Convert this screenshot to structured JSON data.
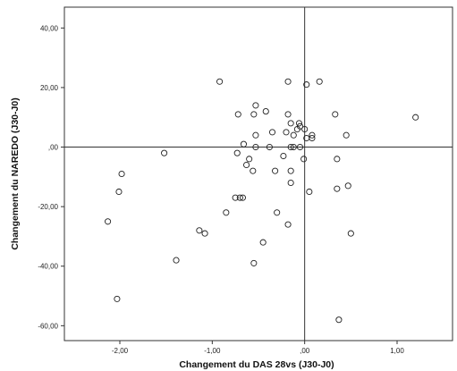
{
  "chart_data": {
    "type": "scatter",
    "title": "",
    "xlabel": "Changement du DAS 28vs (J30-J0)",
    "ylabel": "Changement du NAREDO (J30-J0)",
    "xlim": [
      -2.6,
      1.6
    ],
    "ylim": [
      -65,
      47
    ],
    "x_ticks": [
      -2.0,
      -1.0,
      0.0,
      1.0
    ],
    "x_tick_labels": [
      "-2,00",
      "-1,00",
      ",00",
      "1,00"
    ],
    "y_ticks": [
      40,
      20,
      0,
      -20,
      -40,
      -60
    ],
    "y_tick_labels": [
      "40,00",
      "20,00",
      ",00",
      "-20,00",
      "-40,00",
      "-60,00"
    ],
    "reference_lines": {
      "x": 0,
      "y": 0
    },
    "grid": false,
    "marker": "open-circle",
    "series": [
      {
        "points": [
          [
            -0.92,
            22
          ],
          [
            -0.18,
            22
          ],
          [
            0.02,
            21
          ],
          [
            0.16,
            22
          ],
          [
            -0.53,
            14
          ],
          [
            -0.42,
            12
          ],
          [
            -0.72,
            11
          ],
          [
            -0.55,
            11
          ],
          [
            -0.18,
            11
          ],
          [
            0.33,
            11
          ],
          [
            1.2,
            10
          ],
          [
            -0.15,
            8
          ],
          [
            -0.06,
            8
          ],
          [
            -0.05,
            7
          ],
          [
            -0.08,
            6
          ],
          [
            0.0,
            6
          ],
          [
            -0.2,
            5
          ],
          [
            -0.12,
            4
          ],
          [
            0.08,
            4
          ],
          [
            0.45,
            4
          ],
          [
            0.08,
            3
          ],
          [
            -0.35,
            5
          ],
          [
            0.02,
            3
          ],
          [
            -0.53,
            4
          ],
          [
            -0.38,
            0
          ],
          [
            -0.53,
            0
          ],
          [
            -0.66,
            1
          ],
          [
            -0.73,
            -2
          ],
          [
            -0.6,
            -4
          ],
          [
            -0.15,
            0
          ],
          [
            -0.12,
            0
          ],
          [
            -0.05,
            0
          ],
          [
            -0.23,
            -3
          ],
          [
            -1.52,
            -2
          ],
          [
            -1.98,
            -9
          ],
          [
            -0.56,
            -8
          ],
          [
            -0.32,
            -8
          ],
          [
            -0.15,
            -8
          ],
          [
            -0.63,
            -6
          ],
          [
            -0.01,
            -4
          ],
          [
            0.35,
            -4
          ],
          [
            -0.15,
            -12
          ],
          [
            -2.01,
            -15
          ],
          [
            0.05,
            -15
          ],
          [
            0.35,
            -14
          ],
          [
            0.47,
            -13
          ],
          [
            -0.7,
            -17
          ],
          [
            -0.75,
            -17
          ],
          [
            -0.67,
            -17
          ],
          [
            -0.85,
            -22
          ],
          [
            -0.3,
            -22
          ],
          [
            -2.13,
            -25
          ],
          [
            -0.18,
            -26
          ],
          [
            -1.14,
            -28
          ],
          [
            -1.08,
            -29
          ],
          [
            0.5,
            -29
          ],
          [
            -0.45,
            -32
          ],
          [
            -1.39,
            -38
          ],
          [
            -0.55,
            -39
          ],
          [
            -2.03,
            -51
          ],
          [
            0.37,
            -58
          ]
        ]
      }
    ]
  }
}
